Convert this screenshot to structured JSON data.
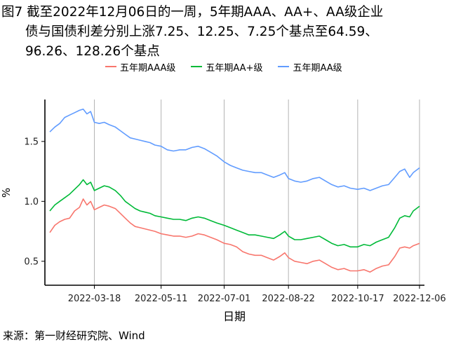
{
  "caption": {
    "line1": "图7  截至2022年12月06日的一周，5年期AAA、AA+、AA级企业",
    "line2": "债与国债利差分别上涨7.25、12.25、7.25个基点至64.59、",
    "line3": "96.26、128.26个基点"
  },
  "source": "来源：第一财经研究院、Wind",
  "chart_data": {
    "type": "line",
    "xlabel": "日期",
    "ylabel": "%",
    "ylim": [
      0.3,
      1.85
    ],
    "xlim": [
      "2022-02-06",
      "2022-12-10"
    ],
    "yticks": [
      0.5,
      1.0,
      1.5
    ],
    "ytick_labels": [
      "0.5",
      "1.0",
      "1.5"
    ],
    "xticks": [
      "2022-03-18",
      "2022-05-11",
      "2022-07-01",
      "2022-08-22",
      "2022-10-17",
      "2022-12-06"
    ],
    "grid": "vertical",
    "legend": "top",
    "series": [
      {
        "name": "五年期AAA级",
        "color": "#F8766D",
        "points": [
          [
            "2022-02-10",
            0.74
          ],
          [
            "2022-02-14",
            0.8
          ],
          [
            "2022-02-18",
            0.83
          ],
          [
            "2022-02-22",
            0.85
          ],
          [
            "2022-02-26",
            0.86
          ],
          [
            "2022-03-02",
            0.92
          ],
          [
            "2022-03-06",
            0.95
          ],
          [
            "2022-03-09",
            1.02
          ],
          [
            "2022-03-12",
            0.97
          ],
          [
            "2022-03-15",
            1.0
          ],
          [
            "2022-03-18",
            0.93
          ],
          [
            "2022-03-22",
            0.95
          ],
          [
            "2022-03-26",
            0.97
          ],
          [
            "2022-03-30",
            0.96
          ],
          [
            "2022-04-04",
            0.94
          ],
          [
            "2022-04-08",
            0.9
          ],
          [
            "2022-04-12",
            0.86
          ],
          [
            "2022-04-16",
            0.82
          ],
          [
            "2022-04-20",
            0.79
          ],
          [
            "2022-04-24",
            0.78
          ],
          [
            "2022-04-28",
            0.77
          ],
          [
            "2022-05-02",
            0.76
          ],
          [
            "2022-05-06",
            0.75
          ],
          [
            "2022-05-11",
            0.73
          ],
          [
            "2022-05-16",
            0.72
          ],
          [
            "2022-05-21",
            0.71
          ],
          [
            "2022-05-26",
            0.71
          ],
          [
            "2022-05-31",
            0.7
          ],
          [
            "2022-06-05",
            0.71
          ],
          [
            "2022-06-10",
            0.73
          ],
          [
            "2022-06-15",
            0.72
          ],
          [
            "2022-06-20",
            0.7
          ],
          [
            "2022-06-25",
            0.68
          ],
          [
            "2022-07-01",
            0.65
          ],
          [
            "2022-07-06",
            0.64
          ],
          [
            "2022-07-11",
            0.62
          ],
          [
            "2022-07-16",
            0.58
          ],
          [
            "2022-07-21",
            0.56
          ],
          [
            "2022-07-26",
            0.55
          ],
          [
            "2022-07-31",
            0.55
          ],
          [
            "2022-08-05",
            0.53
          ],
          [
            "2022-08-10",
            0.51
          ],
          [
            "2022-08-15",
            0.54
          ],
          [
            "2022-08-19",
            0.57
          ],
          [
            "2022-08-22",
            0.53
          ],
          [
            "2022-08-27",
            0.5
          ],
          [
            "2022-09-01",
            0.49
          ],
          [
            "2022-09-06",
            0.48
          ],
          [
            "2022-09-11",
            0.5
          ],
          [
            "2022-09-16",
            0.51
          ],
          [
            "2022-09-21",
            0.48
          ],
          [
            "2022-09-26",
            0.45
          ],
          [
            "2022-10-01",
            0.43
          ],
          [
            "2022-10-06",
            0.44
          ],
          [
            "2022-10-11",
            0.42
          ],
          [
            "2022-10-17",
            0.42
          ],
          [
            "2022-10-22",
            0.43
          ],
          [
            "2022-10-27",
            0.41
          ],
          [
            "2022-11-01",
            0.44
          ],
          [
            "2022-11-06",
            0.46
          ],
          [
            "2022-11-11",
            0.47
          ],
          [
            "2022-11-16",
            0.54
          ],
          [
            "2022-11-20",
            0.61
          ],
          [
            "2022-11-24",
            0.62
          ],
          [
            "2022-11-28",
            0.61
          ],
          [
            "2022-12-01",
            0.63
          ],
          [
            "2022-12-06",
            0.65
          ]
        ]
      },
      {
        "name": "五年期AA+级",
        "color": "#00BA38",
        "points": [
          [
            "2022-02-10",
            0.92
          ],
          [
            "2022-02-14",
            0.97
          ],
          [
            "2022-02-18",
            1.0
          ],
          [
            "2022-02-22",
            1.03
          ],
          [
            "2022-02-26",
            1.06
          ],
          [
            "2022-03-02",
            1.1
          ],
          [
            "2022-03-06",
            1.14
          ],
          [
            "2022-03-09",
            1.18
          ],
          [
            "2022-03-12",
            1.14
          ],
          [
            "2022-03-15",
            1.16
          ],
          [
            "2022-03-18",
            1.09
          ],
          [
            "2022-03-22",
            1.11
          ],
          [
            "2022-03-26",
            1.13
          ],
          [
            "2022-03-30",
            1.12
          ],
          [
            "2022-04-04",
            1.09
          ],
          [
            "2022-04-08",
            1.05
          ],
          [
            "2022-04-12",
            1.0
          ],
          [
            "2022-04-16",
            0.97
          ],
          [
            "2022-04-20",
            0.94
          ],
          [
            "2022-04-24",
            0.92
          ],
          [
            "2022-04-28",
            0.91
          ],
          [
            "2022-05-02",
            0.9
          ],
          [
            "2022-05-06",
            0.88
          ],
          [
            "2022-05-11",
            0.87
          ],
          [
            "2022-05-16",
            0.86
          ],
          [
            "2022-05-21",
            0.85
          ],
          [
            "2022-05-26",
            0.85
          ],
          [
            "2022-05-31",
            0.84
          ],
          [
            "2022-06-05",
            0.86
          ],
          [
            "2022-06-10",
            0.87
          ],
          [
            "2022-06-15",
            0.86
          ],
          [
            "2022-06-20",
            0.84
          ],
          [
            "2022-06-25",
            0.82
          ],
          [
            "2022-07-01",
            0.8
          ],
          [
            "2022-07-06",
            0.78
          ],
          [
            "2022-07-11",
            0.76
          ],
          [
            "2022-07-16",
            0.74
          ],
          [
            "2022-07-21",
            0.72
          ],
          [
            "2022-07-26",
            0.72
          ],
          [
            "2022-07-31",
            0.71
          ],
          [
            "2022-08-05",
            0.7
          ],
          [
            "2022-08-10",
            0.69
          ],
          [
            "2022-08-15",
            0.72
          ],
          [
            "2022-08-19",
            0.75
          ],
          [
            "2022-08-22",
            0.71
          ],
          [
            "2022-08-27",
            0.68
          ],
          [
            "2022-09-01",
            0.68
          ],
          [
            "2022-09-06",
            0.69
          ],
          [
            "2022-09-11",
            0.7
          ],
          [
            "2022-09-16",
            0.71
          ],
          [
            "2022-09-21",
            0.68
          ],
          [
            "2022-09-26",
            0.65
          ],
          [
            "2022-10-01",
            0.63
          ],
          [
            "2022-10-06",
            0.64
          ],
          [
            "2022-10-11",
            0.62
          ],
          [
            "2022-10-17",
            0.62
          ],
          [
            "2022-10-22",
            0.64
          ],
          [
            "2022-10-27",
            0.63
          ],
          [
            "2022-11-01",
            0.66
          ],
          [
            "2022-11-06",
            0.68
          ],
          [
            "2022-11-11",
            0.7
          ],
          [
            "2022-11-16",
            0.78
          ],
          [
            "2022-11-20",
            0.86
          ],
          [
            "2022-11-24",
            0.88
          ],
          [
            "2022-11-28",
            0.87
          ],
          [
            "2022-12-01",
            0.92
          ],
          [
            "2022-12-06",
            0.96
          ]
        ]
      },
      {
        "name": "五年期AA级",
        "color": "#619CFF",
        "points": [
          [
            "2022-02-10",
            1.58
          ],
          [
            "2022-02-14",
            1.62
          ],
          [
            "2022-02-18",
            1.65
          ],
          [
            "2022-02-22",
            1.7
          ],
          [
            "2022-02-26",
            1.72
          ],
          [
            "2022-03-02",
            1.74
          ],
          [
            "2022-03-06",
            1.76
          ],
          [
            "2022-03-09",
            1.77
          ],
          [
            "2022-03-12",
            1.73
          ],
          [
            "2022-03-15",
            1.75
          ],
          [
            "2022-03-18",
            1.66
          ],
          [
            "2022-03-22",
            1.65
          ],
          [
            "2022-03-26",
            1.66
          ],
          [
            "2022-03-30",
            1.64
          ],
          [
            "2022-04-04",
            1.62
          ],
          [
            "2022-04-08",
            1.59
          ],
          [
            "2022-04-12",
            1.56
          ],
          [
            "2022-04-16",
            1.53
          ],
          [
            "2022-04-20",
            1.52
          ],
          [
            "2022-04-24",
            1.51
          ],
          [
            "2022-04-28",
            1.5
          ],
          [
            "2022-05-02",
            1.49
          ],
          [
            "2022-05-06",
            1.47
          ],
          [
            "2022-05-11",
            1.46
          ],
          [
            "2022-05-16",
            1.43
          ],
          [
            "2022-05-21",
            1.42
          ],
          [
            "2022-05-26",
            1.43
          ],
          [
            "2022-05-31",
            1.43
          ],
          [
            "2022-06-05",
            1.45
          ],
          [
            "2022-06-10",
            1.46
          ],
          [
            "2022-06-15",
            1.44
          ],
          [
            "2022-06-20",
            1.41
          ],
          [
            "2022-06-25",
            1.38
          ],
          [
            "2022-07-01",
            1.33
          ],
          [
            "2022-07-06",
            1.3
          ],
          [
            "2022-07-11",
            1.28
          ],
          [
            "2022-07-16",
            1.26
          ],
          [
            "2022-07-21",
            1.25
          ],
          [
            "2022-07-26",
            1.24
          ],
          [
            "2022-07-31",
            1.24
          ],
          [
            "2022-08-05",
            1.22
          ],
          [
            "2022-08-10",
            1.2
          ],
          [
            "2022-08-15",
            1.22
          ],
          [
            "2022-08-19",
            1.24
          ],
          [
            "2022-08-22",
            1.19
          ],
          [
            "2022-08-27",
            1.17
          ],
          [
            "2022-09-01",
            1.16
          ],
          [
            "2022-09-06",
            1.17
          ],
          [
            "2022-09-11",
            1.19
          ],
          [
            "2022-09-16",
            1.2
          ],
          [
            "2022-09-21",
            1.17
          ],
          [
            "2022-09-26",
            1.14
          ],
          [
            "2022-10-01",
            1.12
          ],
          [
            "2022-10-06",
            1.13
          ],
          [
            "2022-10-11",
            1.11
          ],
          [
            "2022-10-17",
            1.1
          ],
          [
            "2022-10-22",
            1.11
          ],
          [
            "2022-10-27",
            1.09
          ],
          [
            "2022-11-01",
            1.11
          ],
          [
            "2022-11-06",
            1.13
          ],
          [
            "2022-11-11",
            1.14
          ],
          [
            "2022-11-16",
            1.2
          ],
          [
            "2022-11-20",
            1.25
          ],
          [
            "2022-11-24",
            1.27
          ],
          [
            "2022-11-28",
            1.2
          ],
          [
            "2022-12-01",
            1.24
          ],
          [
            "2022-12-06",
            1.28
          ]
        ]
      }
    ]
  }
}
